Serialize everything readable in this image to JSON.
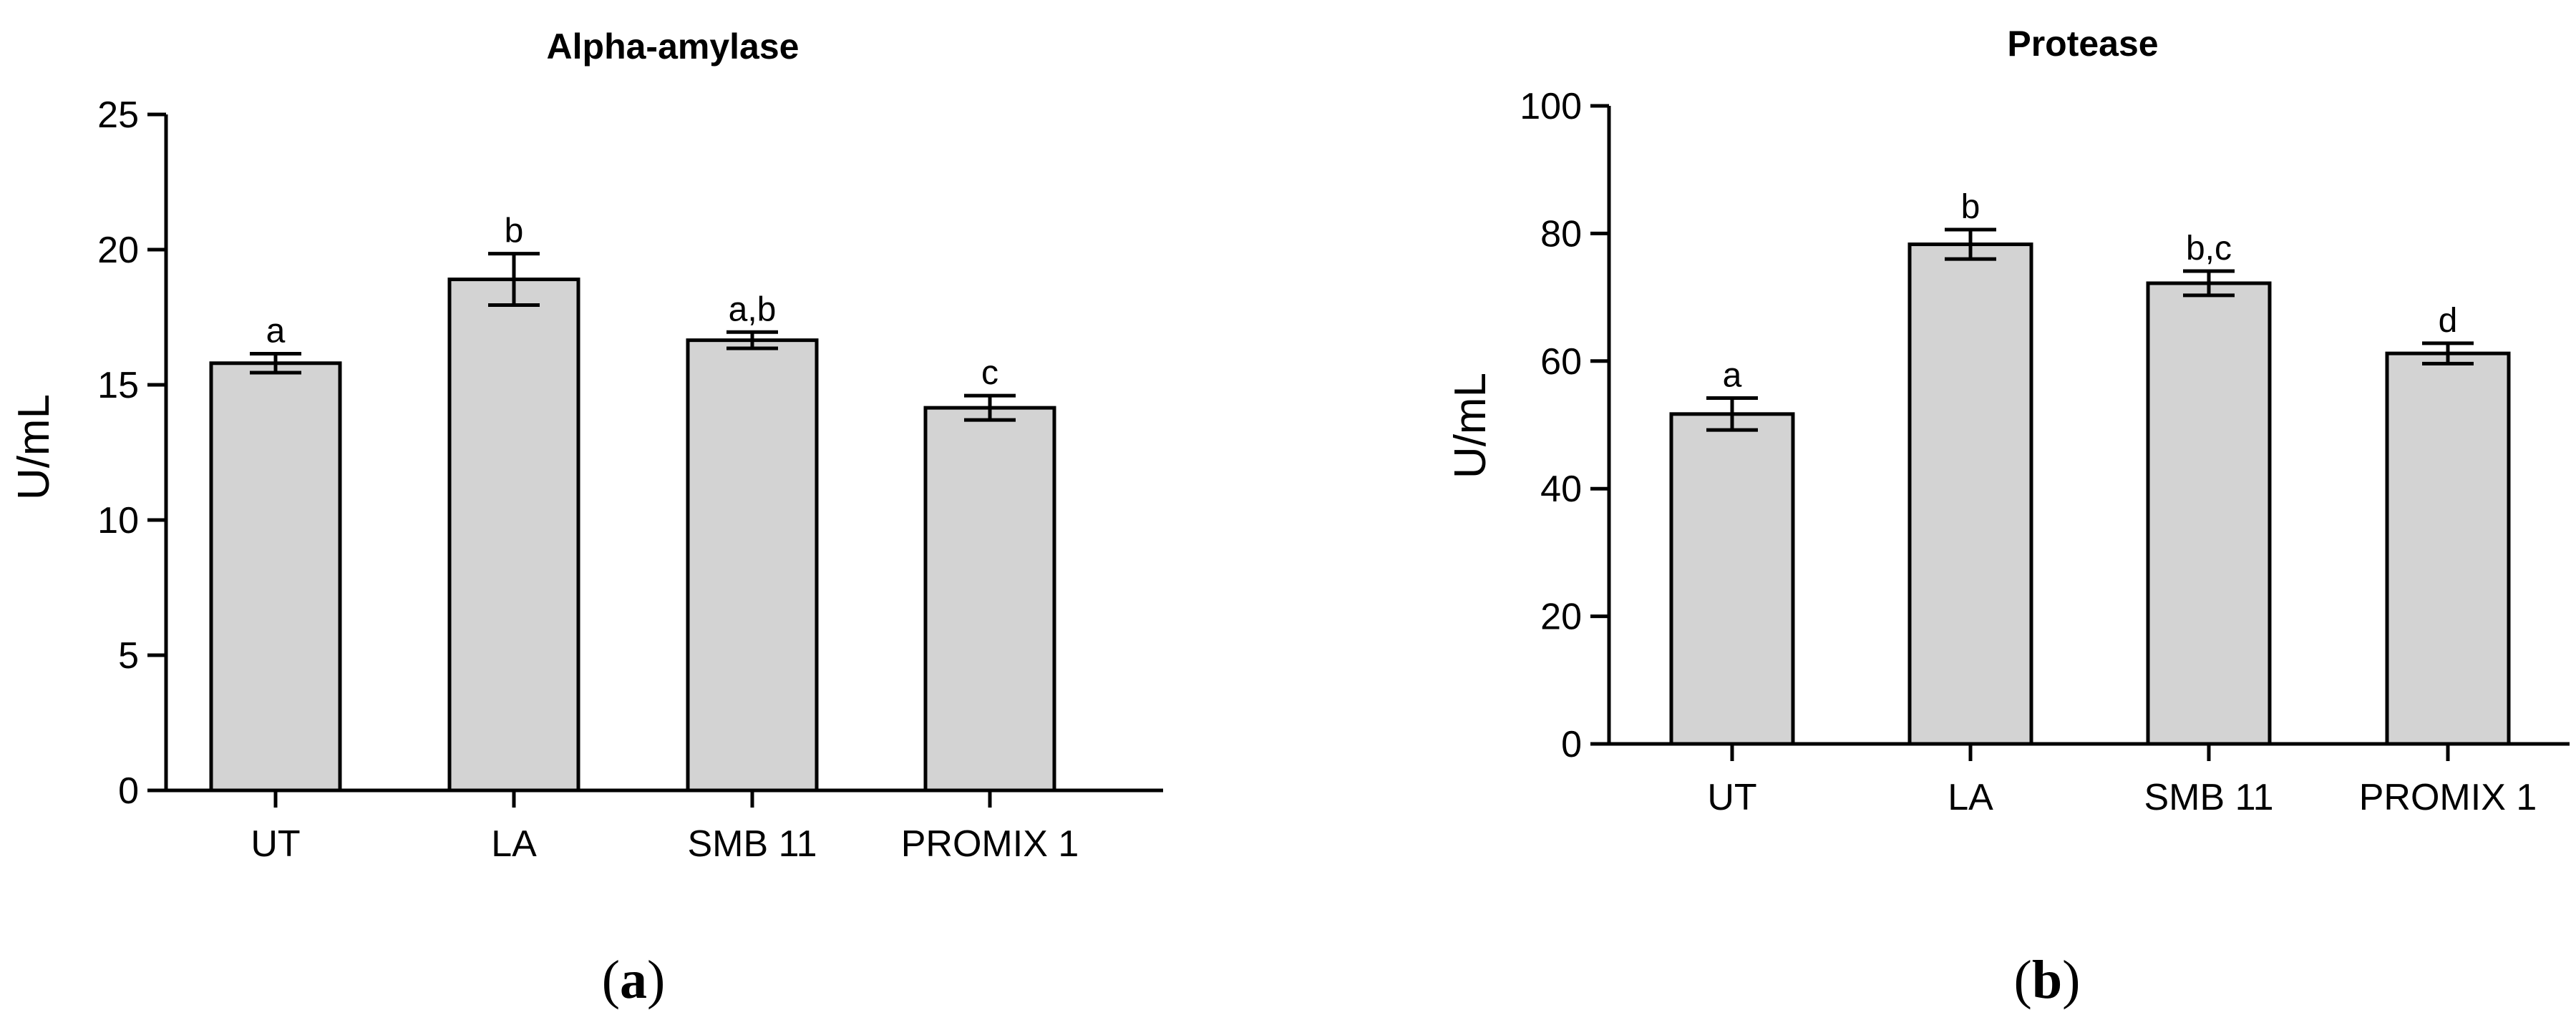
{
  "chart_data": [
    {
      "type": "bar",
      "title": "Alpha-amylase",
      "ylabel": "U/mL",
      "xlabel": "",
      "categories": [
        "UT",
        "LA",
        "SMB 11",
        "PROMIX 1"
      ],
      "values": [
        15.8,
        18.9,
        16.65,
        14.15
      ],
      "errors": [
        0.35,
        0.95,
        0.3,
        0.45
      ],
      "significance": [
        "a",
        "b",
        "a,b",
        "c"
      ],
      "ylim": [
        0,
        25
      ],
      "yticks": [
        0,
        5,
        10,
        15,
        20,
        25
      ],
      "grid": false,
      "caption_open": "(",
      "caption_letter": "a",
      "caption_close": ")"
    },
    {
      "type": "bar",
      "title": "Protease",
      "ylabel": "U/mL",
      "xlabel": "",
      "categories": [
        "UT",
        "LA",
        "SMB 11",
        "PROMIX 1"
      ],
      "values": [
        51.7,
        78.3,
        72.2,
        61.2
      ],
      "errors": [
        2.5,
        2.3,
        1.9,
        1.6
      ],
      "significance": [
        "a",
        "b",
        "b,c",
        "d"
      ],
      "ylim": [
        0,
        100
      ],
      "yticks": [
        0,
        20,
        40,
        60,
        80,
        100
      ],
      "grid": false,
      "caption_open": "(",
      "caption_letter": "b",
      "caption_close": ")"
    }
  ]
}
